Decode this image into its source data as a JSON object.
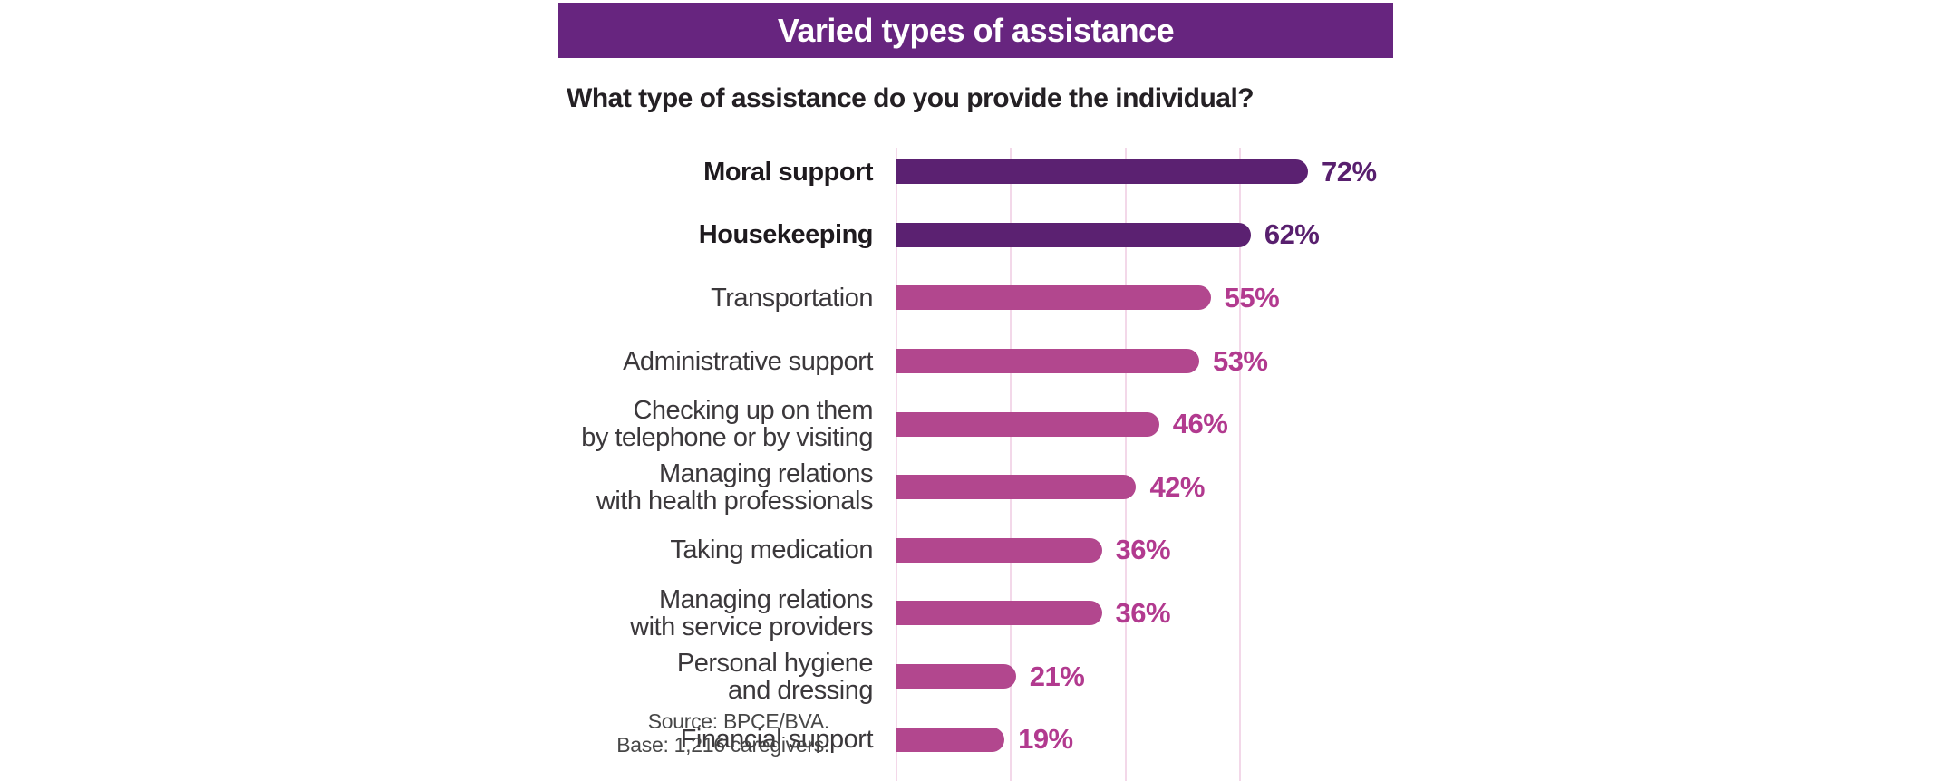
{
  "title": "Varied types of assistance",
  "question": "What type of assistance do you provide the individual?",
  "chart_data": {
    "type": "bar",
    "orientation": "horizontal",
    "unit": "percent",
    "title": "Varied types of assistance",
    "subtitle": "What type of assistance do you provide the individual?",
    "categories": [
      "Moral support",
      "Housekeeping",
      "Transportation",
      "Administrative support",
      "Checking up on them\nby telephone or by visiting",
      "Managing relations\nwith health professionals",
      "Taking medication",
      "Managing relations\nwith service providers",
      "Personal hygiene\nand dressing",
      "Financial support"
    ],
    "values": [
      72,
      62,
      55,
      53,
      46,
      42,
      36,
      36,
      21,
      19
    ],
    "value_labels": [
      "72%",
      "62%",
      "55%",
      "53%",
      "46%",
      "42%",
      "36%",
      "36%",
      "21%",
      "19%"
    ],
    "highlight_rows": [
      0,
      1
    ],
    "xlim": [
      0,
      80
    ],
    "gridlines_pct": [
      0,
      20,
      40,
      60
    ],
    "grid": "vertical light pink lines, no tick labels",
    "legend": "none"
  },
  "source": {
    "line1": "Source: BPCE/BVA.",
    "line2": "Base: 1,216 caregivers."
  },
  "colors": {
    "background": "#FFFFFF",
    "banner_bg": "#67257F",
    "banner_text": "#FFFFFF",
    "bar_primary": "#5B2171",
    "bar_secondary": "#B2478E",
    "value_primary": "#581F6E",
    "value_secondary": "#B23A8F",
    "label_strong": "#1E1A1E",
    "label_normal": "#3B383B",
    "gridline": "#F3D8E9",
    "question_text": "#242024",
    "source_text": "#474747"
  }
}
